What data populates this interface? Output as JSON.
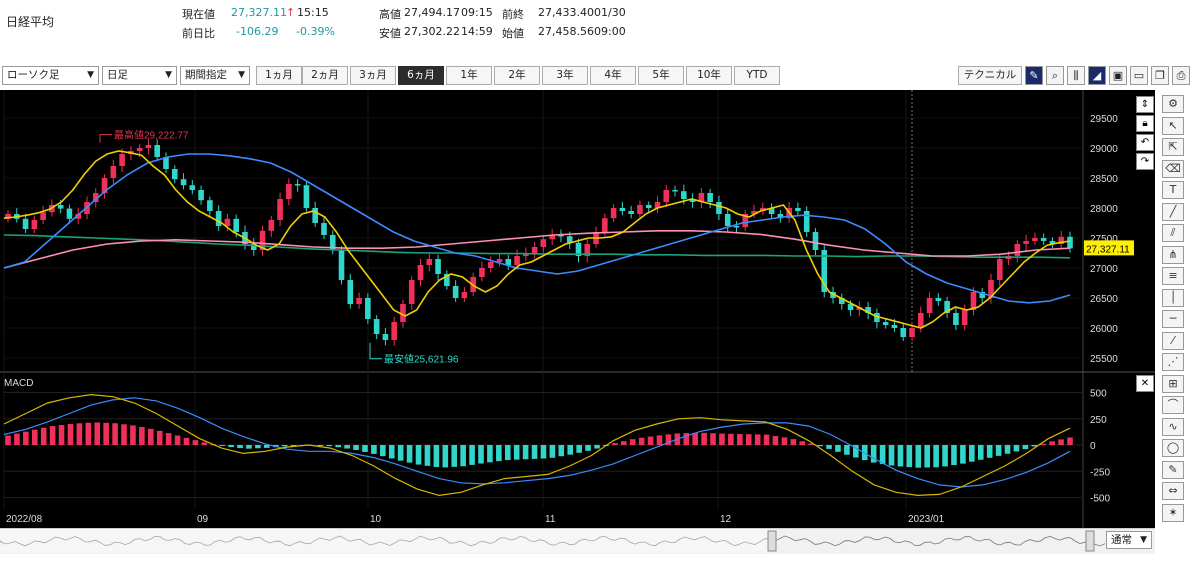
{
  "index_name": "日経平均",
  "quote": {
    "current_label": "現在値",
    "current_value": "27,327.11",
    "current_arrow": "↑",
    "current_time": "15:15",
    "change_label": "前日比",
    "change_value": "-106.29",
    "change_pct": "-0.39%",
    "high_label": "高値",
    "high_value": "27,494.17",
    "high_time": "09:15",
    "low_label": "安値",
    "low_value": "27,302.22",
    "low_time": "14:59",
    "prev_label": "前終",
    "prev_value": "27,433.40",
    "prev_date": "01/30",
    "open_label": "始値",
    "open_value": "27,458.56",
    "open_time": "09:00"
  },
  "toolbar": {
    "chart_type": "ローソク足",
    "interval": "日足",
    "period": "期間指定",
    "timeframes": [
      "1ヵ月",
      "2ヵ月",
      "3ヵ月",
      "6ヵ月",
      "1年",
      "2年",
      "3年",
      "4年",
      "5年",
      "10年",
      "YTD"
    ],
    "active_timeframe": "6ヵ月",
    "technical_label": "テクニカル",
    "icons": [
      "pencil-icon",
      "zoom-icon",
      "candle-icon",
      "area-chart-icon",
      "save-icon",
      "folder-icon",
      "copy-icon",
      "print-icon",
      "gear-icon"
    ]
  },
  "chart_data": {
    "type": "candlestick",
    "title": "",
    "y_ticks": [
      "29500",
      "29000",
      "28500",
      "28000",
      "27500",
      "27000",
      "26500",
      "26000",
      "25500"
    ],
    "ylim": [
      25300,
      29800
    ],
    "x_labels": [
      "2022/08",
      "09",
      "10",
      "11",
      "12",
      "2023/01"
    ],
    "last_price_label": "27,327.11",
    "high_annotation": "最高値29,222.77",
    "low_annotation": "最安値25,621.96",
    "closes": [
      27900,
      27820,
      27650,
      27800,
      27930,
      28050,
      27990,
      27820,
      27900,
      28100,
      28250,
      28500,
      28700,
      28900,
      28950,
      29000,
      29050,
      28850,
      28650,
      28480,
      28380,
      28300,
      28130,
      27950,
      27700,
      27820,
      27600,
      27400,
      27300,
      27620,
      27800,
      28150,
      28400,
      28380,
      28000,
      27750,
      27550,
      27300,
      26800,
      26400,
      26500,
      26150,
      25900,
      25800,
      26100,
      26400,
      26800,
      27050,
      27150,
      26900,
      26700,
      26500,
      26600,
      26850,
      27000,
      27100,
      27150,
      27050,
      27200,
      27250,
      27350,
      27480,
      27550,
      27530,
      27420,
      27200,
      27400,
      27600,
      27830,
      28000,
      27950,
      27900,
      28050,
      28000,
      28100,
      28300,
      28280,
      28150,
      28100,
      28250,
      28100,
      27900,
      27700,
      27680,
      27900,
      27950,
      28000,
      27900,
      27830,
      28000,
      27950,
      27600,
      27300,
      26600,
      26500,
      26400,
      26300,
      26350,
      26250,
      26100,
      26050,
      26000,
      25850,
      26000,
      26250,
      26500,
      26450,
      26250,
      26050,
      26300,
      26600,
      26500,
      26800,
      27150,
      27200,
      27400,
      27450,
      27500,
      27450,
      27400,
      27520,
      27327
    ],
    "ma_short": [
      27830,
      27850,
      27880,
      27920,
      27980,
      28100,
      28300,
      28560,
      28780,
      28900,
      28950,
      28920,
      28880,
      28700,
      28550,
      28300,
      28100,
      27950,
      27850,
      27750,
      27600,
      27500,
      27380,
      27300,
      27400,
      27700,
      27900,
      27950,
      27850,
      27600,
      27300,
      27050,
      26800,
      26550,
      26300,
      26200,
      26300,
      26600,
      26800,
      26900,
      26850,
      26700,
      26600,
      26700,
      26900,
      27050,
      27100,
      27200,
      27300,
      27400,
      27450,
      27500,
      27500,
      27520,
      27600,
      27750,
      27900,
      28000,
      28050,
      28100,
      28150,
      28100,
      28050,
      28000,
      27900,
      27850,
      27950,
      28000,
      28050,
      27800,
      27300,
      26900,
      26600,
      26500,
      26400,
      26300,
      26200,
      26150,
      26100,
      26050,
      26000,
      26100,
      26250,
      26350,
      26300,
      26350,
      26500,
      26700,
      26900,
      27100,
      27250,
      27380,
      27420,
      27450
    ],
    "ma_mid": [
      27000,
      27100,
      27400,
      27700,
      28000,
      28300,
      28550,
      28750,
      28850,
      28900,
      28900,
      28870,
      28820,
      28750,
      28600,
      28400,
      28200,
      28000,
      27800,
      27600,
      27450,
      27350,
      27250,
      27200,
      27100,
      27000,
      26950,
      26900,
      26950,
      27050,
      27150,
      27250,
      27350,
      27450,
      27550,
      27650,
      27750,
      27800,
      27850,
      27880,
      27850,
      27800,
      27650,
      27400,
      27100,
      26900,
      26750,
      26650,
      26550,
      26450,
      26420,
      26450,
      26550
    ],
    "ma_long": [
      27550,
      27540,
      27520,
      27500,
      27480,
      27460,
      27430,
      27400,
      27380,
      27350,
      27320,
      27300,
      27280,
      27260,
      27250,
      27250,
      27240,
      27240,
      27230,
      27230,
      27230,
      27220,
      27220,
      27210,
      27210,
      27210,
      27200,
      27200,
      27190,
      27200,
      27200,
      27190,
      27180,
      27180,
      27180,
      27170
    ],
    "ma_long2": [
      27000,
      27150,
      27300,
      27400,
      27450,
      27470,
      27450,
      27430,
      27390,
      27350,
      27330,
      27330,
      27350,
      27400,
      27450,
      27500,
      27550,
      27580,
      27600,
      27620,
      27620,
      27600,
      27560,
      27480,
      27380,
      27300,
      27250,
      27200,
      27200,
      27230,
      27300,
      27330
    ],
    "macd_label": "MACD",
    "macd_ticks": [
      "500",
      "250",
      "0",
      "-250",
      "-500"
    ],
    "macd_ylim": [
      -600,
      600
    ],
    "macd_line": [
      200,
      300,
      400,
      450,
      480,
      460,
      400,
      300,
      180,
      60,
      -30,
      -80,
      -60,
      -20,
      0,
      -30,
      -100,
      -200,
      -320,
      -420,
      -480,
      -450,
      -380,
      -320,
      -300,
      -280,
      -200,
      -100,
      40,
      140,
      200,
      250,
      260,
      240,
      230,
      220,
      150,
      40,
      -100,
      -250,
      -380,
      -450,
      -480,
      -470,
      -400,
      -300,
      -200,
      -80,
      60,
      160
    ],
    "signal_line": [
      100,
      150,
      220,
      300,
      380,
      430,
      450,
      420,
      350,
      260,
      160,
      80,
      10,
      -40,
      -60,
      -60,
      -80,
      -120,
      -180,
      -250,
      -320,
      -360,
      -370,
      -360,
      -340,
      -320,
      -290,
      -240,
      -180,
      -100,
      -20,
      60,
      130,
      170,
      200,
      210,
      210,
      180,
      100,
      -10,
      -130,
      -240,
      -320,
      -380,
      -400,
      -380,
      -330,
      -260,
      -170,
      -60
    ]
  },
  "right_tools": [
    "settings-icon",
    "cursor-icon",
    "cursor-cross-icon",
    "eraser-icon",
    "text-icon",
    "line-icon",
    "channel-icon",
    "pitchfork-icon",
    "fibonacci-icon",
    "vertical-line-icon",
    "horizontal-line-icon",
    "trend-line-icon",
    "fan-icon",
    "gann-icon",
    "arc-icon",
    "wave-icon",
    "ellipse-icon",
    "brush-icon",
    "measure-icon",
    "star-icon"
  ],
  "navigator": {
    "mode_label": "通常"
  }
}
